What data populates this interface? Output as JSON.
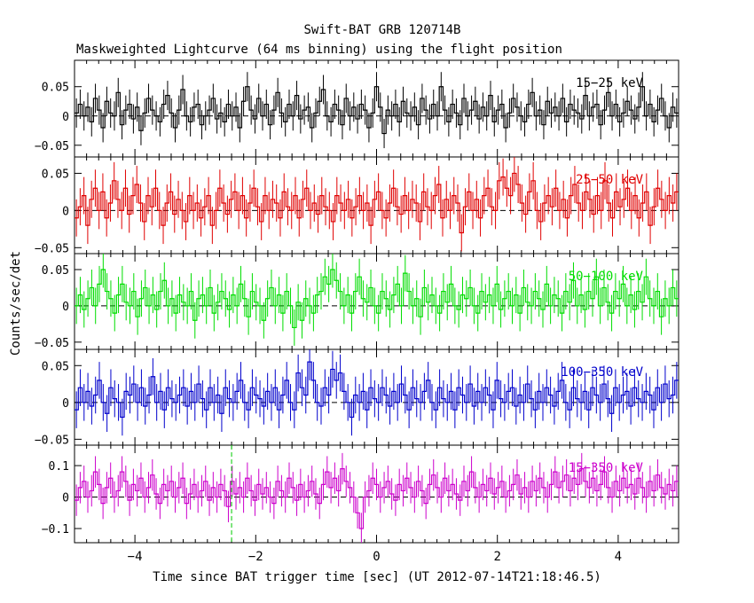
{
  "chart_data": {
    "type": "line",
    "style": "step",
    "title": "Swift-BAT GRB 120714B",
    "subtitle": "Maskweighted Lightcurve (64 ms binning) using the flight position",
    "xlabel": "Time since BAT trigger time [sec] (UT 2012-07-14T21:18:46.5)",
    "ylabel": "Counts/sec/det",
    "xlim": [
      -5.0,
      5.0
    ],
    "x_ticks": [
      -4,
      -2,
      0,
      2,
      4
    ],
    "x_tick_labels": [
      "−4",
      "−2",
      "0",
      "2",
      "4"
    ],
    "bin_width_sec": 0.064,
    "marker_line": {
      "x": -2.4,
      "color": "#00cc00",
      "panel": "15-350 keV"
    },
    "panels": [
      {
        "name": "15-25 keV",
        "label": "15−25 keV",
        "color": "#000000",
        "ylim": [
          -0.07,
          0.095
        ],
        "y_ticks": [
          0.05,
          0,
          -0.05
        ],
        "y_tick_labels": [
          "0.05",
          "0",
          "−0.05"
        ],
        "errbar": 0.025,
        "values": [
          0.005,
          0.02,
          0.0,
          0.015,
          -0.01,
          0.03,
          0.01,
          -0.02,
          0.025,
          0.005,
          0.0,
          0.04,
          -0.015,
          0.01,
          0.02,
          -0.005,
          0.015,
          -0.025,
          0.005,
          0.03,
          0.01,
          0.0,
          -0.01,
          0.02,
          0.035,
          0.005,
          -0.02,
          0.01,
          0.045,
          0.0,
          -0.01,
          0.015,
          0.02,
          -0.015,
          0.0,
          0.01,
          0.03,
          -0.005,
          0.005,
          -0.01,
          0.02,
          0.0,
          0.015,
          -0.02,
          0.025,
          0.05,
          0.01,
          -0.005,
          0.03,
          0.0,
          0.02,
          -0.015,
          0.01,
          0.04,
          0.005,
          -0.01,
          0.02,
          0.0,
          0.035,
          -0.005,
          0.01,
          0.015,
          -0.02,
          0.005,
          0.025,
          0.045,
          0.0,
          -0.01,
          0.02,
          0.01,
          -0.015,
          0.03,
          0.0,
          0.015,
          -0.005,
          0.02,
          0.01,
          -0.02,
          0.005,
          0.05,
          0.015,
          -0.03,
          0.01,
          0.0,
          0.02,
          -0.01,
          0.025,
          0.005,
          0.0,
          0.015,
          -0.015,
          0.03,
          0.01,
          -0.005,
          0.02,
          0.0,
          0.05,
          0.01,
          -0.01,
          0.02,
          0.005,
          -0.015,
          0.03,
          0.0,
          0.01,
          0.025,
          -0.005,
          0.015,
          0.0,
          0.035,
          -0.01,
          0.01,
          0.02,
          -0.02,
          0.005,
          0.03,
          0.015,
          0.0,
          -0.01,
          0.02,
          0.04,
          0.0,
          0.01,
          -0.015,
          0.025,
          0.005,
          0.015,
          0.0,
          0.03,
          -0.01,
          0.02,
          0.01,
          0.005,
          -0.005,
          0.035,
          0.0,
          0.015,
          0.02,
          -0.015,
          0.01,
          0.04,
          0.0,
          0.02,
          -0.01,
          0.005,
          0.025,
          0.01,
          -0.005,
          0.015,
          0.05,
          0.0,
          0.02,
          -0.01,
          0.01,
          0.03,
          0.0,
          -0.02,
          0.015,
          0.005
        ]
      },
      {
        "name": "25-50 keV",
        "label": "25−50 keV",
        "color": "#e00000",
        "ylim": [
          -0.058,
          0.072
        ],
        "y_ticks": [
          0.05,
          0,
          -0.05
        ],
        "y_tick_labels": [
          "0.05",
          "0",
          "−0.05"
        ],
        "errbar": 0.025,
        "values": [
          -0.01,
          0.005,
          0.02,
          -0.02,
          0.015,
          0.03,
          0.0,
          0.025,
          -0.01,
          0.01,
          0.04,
          0.015,
          0.0,
          0.03,
          -0.005,
          0.02,
          0.035,
          0.01,
          -0.015,
          0.02,
          0.005,
          0.03,
          0.0,
          -0.02,
          0.01,
          0.025,
          -0.005,
          0.015,
          0.0,
          -0.015,
          0.02,
          0.0,
          0.01,
          -0.01,
          0.005,
          0.02,
          -0.02,
          0.0,
          0.03,
          0.01,
          -0.005,
          0.015,
          0.025,
          0.0,
          0.02,
          -0.01,
          0.01,
          0.03,
          0.005,
          -0.015,
          0.02,
          0.0,
          0.015,
          0.01,
          -0.01,
          0.025,
          0.005,
          0.0,
          0.02,
          -0.01,
          0.015,
          0.03,
          0.0,
          0.01,
          -0.005,
          0.02,
          0.005,
          0.0,
          -0.015,
          0.02,
          0.01,
          0.0,
          0.015,
          -0.01,
          0.005,
          0.02,
          0.0,
          0.01,
          -0.02,
          0.015,
          0.025,
          0.0,
          -0.01,
          0.01,
          0.03,
          0.005,
          -0.005,
          0.02,
          0.0,
          0.015,
          0.01,
          -0.015,
          0.025,
          0.005,
          0.0,
          0.02,
          0.035,
          -0.01,
          0.015,
          0.0,
          0.02,
          0.01,
          -0.03,
          0.005,
          0.025,
          0.0,
          0.015,
          -0.01,
          0.02,
          0.03,
          0.005,
          0.0,
          0.04,
          0.045,
          0.03,
          0.02,
          0.05,
          0.035,
          0.01,
          -0.005,
          0.025,
          0.04,
          0.0,
          -0.015,
          0.01,
          0.02,
          0.005,
          0.03,
          0.0,
          0.015,
          -0.01,
          0.02,
          0.035,
          0.01,
          0.0,
          0.025,
          0.015,
          -0.005,
          0.02,
          0.0,
          0.04,
          0.01,
          -0.01,
          0.025,
          0.005,
          0.015,
          0.03,
          0.0,
          0.02,
          -0.01,
          0.01,
          0.025,
          -0.02,
          0.005,
          0.03,
          0.015,
          0.0,
          0.02,
          0.01,
          0.025
        ]
      },
      {
        "name": "50-100 keV",
        "label": "50−100 keV",
        "color": "#00dd00",
        "ylim": [
          -0.06,
          0.072
        ],
        "y_ticks": [
          0.05,
          0,
          -0.05
        ],
        "y_tick_labels": [
          "0.05",
          "0",
          "−0.05"
        ],
        "errbar": 0.025,
        "values": [
          0.0,
          0.015,
          -0.005,
          0.01,
          0.025,
          0.0,
          0.03,
          0.05,
          0.02,
          0.01,
          -0.01,
          0.015,
          0.03,
          0.005,
          0.0,
          0.02,
          -0.015,
          0.01,
          0.025,
          0.0,
          0.015,
          -0.005,
          0.02,
          0.035,
          0.0,
          0.01,
          -0.01,
          0.015,
          0.005,
          0.0,
          0.02,
          -0.02,
          0.01,
          0.015,
          0.0,
          0.025,
          -0.01,
          0.005,
          0.02,
          0.01,
          -0.005,
          0.015,
          0.0,
          0.03,
          0.01,
          -0.015,
          0.02,
          0.005,
          0.0,
          -0.02,
          0.01,
          0.025,
          0.0,
          0.015,
          -0.01,
          0.02,
          0.0,
          -0.03,
          0.005,
          -0.02,
          0.01,
          0.0,
          -0.01,
          0.015,
          0.02,
          0.04,
          0.03,
          0.05,
          0.035,
          0.02,
          0.0,
          0.015,
          -0.01,
          0.02,
          0.04,
          0.01,
          0.005,
          0.025,
          0.0,
          -0.01,
          0.02,
          0.01,
          -0.005,
          0.015,
          0.03,
          0.0,
          0.045,
          0.02,
          0.0,
          0.01,
          -0.015,
          0.025,
          0.005,
          0.015,
          0.0,
          -0.01,
          0.02,
          0.005,
          0.03,
          0.0,
          -0.005,
          0.015,
          0.01,
          0.025,
          0.0,
          -0.01,
          0.02,
          0.005,
          0.015,
          0.0,
          0.03,
          -0.005,
          0.01,
          0.02,
          0.0,
          0.015,
          -0.01,
          0.025,
          0.005,
          0.0,
          0.02,
          0.01,
          -0.005,
          0.03,
          0.0,
          0.015,
          0.01,
          -0.01,
          0.02,
          0.005,
          0.035,
          0.0,
          0.015,
          -0.005,
          0.02,
          0.01,
          0.04,
          0.0,
          0.025,
          0.005,
          -0.01,
          0.02,
          0.01,
          0.03,
          0.0,
          0.015,
          -0.005,
          0.02,
          0.005,
          0.04,
          0.01,
          0.0,
          0.02,
          -0.015,
          0.01,
          0.0,
          0.025,
          0.01
        ]
      },
      {
        "name": "100-350 keV",
        "label": "100−350 keV",
        "color": "#0000cc",
        "ylim": [
          -0.058,
          0.072
        ],
        "y_ticks": [
          0.05,
          0,
          -0.05
        ],
        "y_tick_labels": [
          "0.05",
          "0",
          "−0.05"
        ],
        "errbar": 0.025,
        "values": [
          -0.01,
          0.02,
          0.0,
          0.015,
          -0.005,
          0.01,
          0.03,
          0.0,
          -0.015,
          0.02,
          0.005,
          0.0,
          -0.02,
          0.015,
          0.01,
          0.025,
          0.0,
          0.02,
          -0.005,
          0.01,
          0.035,
          0.0,
          0.015,
          -0.01,
          0.02,
          0.005,
          0.0,
          0.01,
          0.02,
          -0.005,
          0.015,
          0.0,
          0.025,
          0.005,
          -0.01,
          0.02,
          0.0,
          0.01,
          -0.015,
          0.02,
          0.005,
          0.0,
          0.015,
          0.03,
          0.0,
          -0.01,
          0.02,
          0.01,
          0.005,
          -0.005,
          0.015,
          0.0,
          0.02,
          -0.01,
          0.01,
          0.03,
          0.0,
          -0.01,
          0.04,
          0.02,
          0.01,
          0.055,
          0.03,
          0.0,
          -0.005,
          0.02,
          0.01,
          0.045,
          0.03,
          0.04,
          0.015,
          0.0,
          -0.02,
          0.01,
          0.0,
          0.015,
          -0.01,
          0.02,
          0.005,
          0.0,
          0.02,
          0.01,
          -0.005,
          0.015,
          0.0,
          0.025,
          0.01,
          -0.01,
          0.02,
          0.005,
          0.0,
          0.015,
          0.03,
          0.0,
          -0.01,
          0.02,
          0.005,
          0.0,
          0.015,
          -0.01,
          0.02,
          0.01,
          0.0,
          0.025,
          -0.005,
          0.015,
          0.0,
          0.02,
          0.01,
          -0.01,
          0.03,
          0.005,
          0.0,
          0.015,
          0.02,
          -0.005,
          0.01,
          0.0,
          0.025,
          0.005,
          -0.01,
          0.015,
          0.0,
          0.02,
          0.01,
          -0.005,
          0.015,
          0.03,
          0.0,
          -0.01,
          0.02,
          0.005,
          0.0,
          0.015,
          -0.01,
          0.02,
          0.01,
          0.0,
          0.025,
          0.005,
          -0.015,
          0.02,
          0.0,
          0.01,
          0.015,
          -0.005,
          0.02,
          0.005,
          0.0,
          0.015,
          0.01,
          -0.01,
          0.02,
          0.0,
          0.025,
          0.005,
          0.01,
          0.03
        ]
      },
      {
        "name": "15-350 keV",
        "label": "15−350 keV",
        "color": "#cc00cc",
        "ylim": [
          -0.145,
          0.165
        ],
        "y_ticks": [
          0.1,
          0,
          -0.1
        ],
        "y_tick_labels": [
          "0.1",
          "0",
          "−0.1"
        ],
        "errbar": 0.05,
        "values": [
          -0.01,
          0.03,
          0.05,
          0.0,
          0.02,
          0.08,
          0.04,
          -0.02,
          0.03,
          0.06,
          0.0,
          0.02,
          0.08,
          0.05,
          -0.01,
          0.04,
          0.02,
          0.06,
          0.0,
          0.03,
          0.07,
          0.01,
          -0.02,
          0.04,
          0.02,
          0.05,
          0.0,
          0.03,
          0.06,
          -0.02,
          0.01,
          0.04,
          0.0,
          0.02,
          0.05,
          -0.01,
          0.03,
          0.0,
          0.04,
          0.02,
          -0.03,
          0.05,
          0.01,
          0.03,
          0.0,
          0.06,
          0.02,
          -0.01,
          0.04,
          0.01,
          0.03,
          0.0,
          -0.02,
          0.05,
          0.02,
          0.0,
          0.06,
          0.03,
          -0.01,
          0.04,
          0.0,
          0.02,
          0.05,
          0.01,
          -0.02,
          0.04,
          0.08,
          0.03,
          0.06,
          0.02,
          0.09,
          0.05,
          0.03,
          0.0,
          -0.05,
          -0.1,
          0.0,
          0.02,
          0.06,
          0.04,
          0.0,
          0.03,
          0.05,
          0.01,
          -0.01,
          0.04,
          0.02,
          0.06,
          0.03,
          0.0,
          0.05,
          0.02,
          -0.02,
          0.04,
          0.07,
          0.03,
          0.0,
          0.06,
          0.02,
          0.04,
          0.01,
          -0.01,
          0.05,
          0.02,
          0.08,
          0.03,
          0.0,
          0.04,
          0.02,
          0.06,
          0.01,
          0.03,
          0.05,
          0.0,
          0.02,
          0.04,
          0.07,
          0.01,
          0.03,
          0.0,
          0.05,
          0.02,
          0.06,
          0.03,
          0.0,
          0.04,
          0.08,
          0.03,
          0.05,
          0.07,
          0.02,
          0.06,
          0.04,
          0.09,
          0.05,
          0.03,
          0.06,
          0.02,
          0.04,
          0.08,
          0.03,
          0.0,
          0.05,
          0.02,
          0.06,
          0.03,
          0.04,
          0.01,
          0.06,
          0.03,
          0.0,
          0.05,
          0.02,
          0.07,
          0.03,
          0.01,
          0.04,
          0.02,
          0.05
        ]
      }
    ]
  }
}
